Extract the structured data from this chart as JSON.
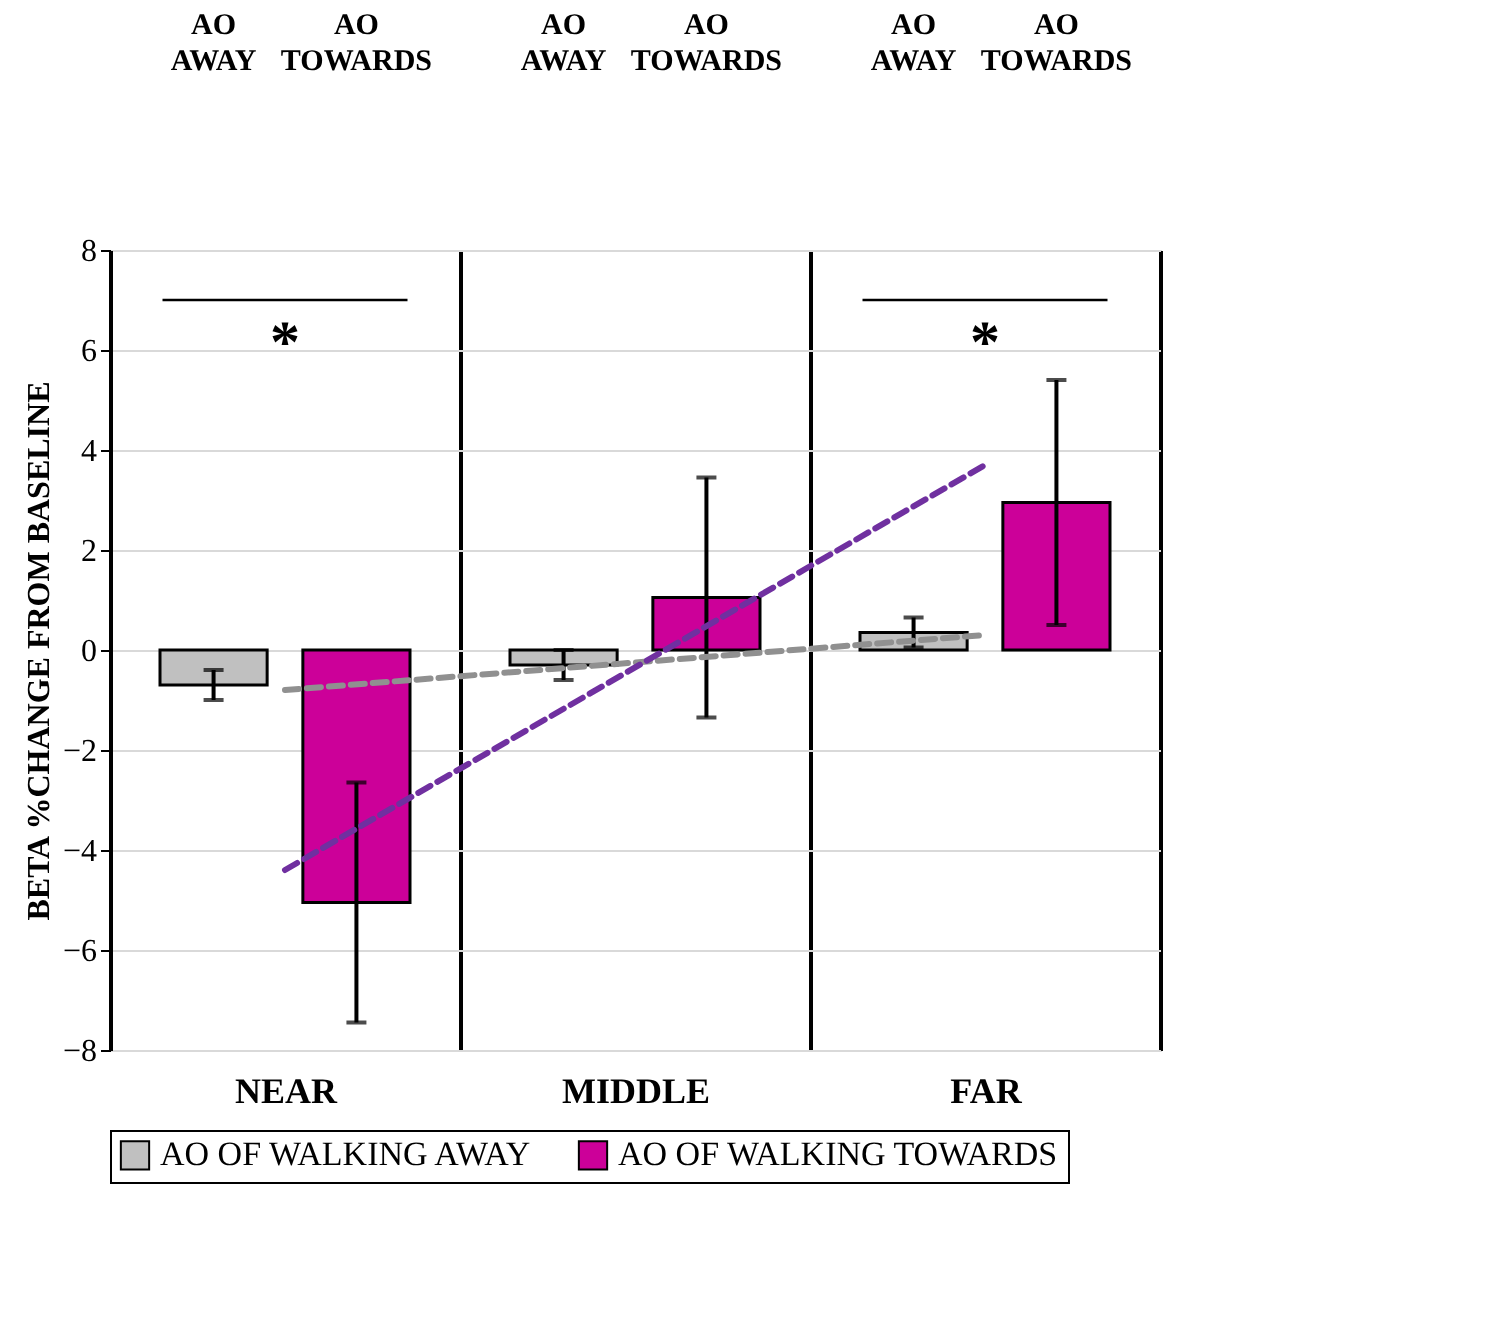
{
  "chart_data": {
    "type": "bar",
    "ylabel": "BETA %CHANGE FROM BASELINE",
    "categories": [
      "NEAR",
      "MIDDLE",
      "FAR"
    ],
    "series": [
      {
        "name": "AO OF WALKING AWAY",
        "color": "#c0c0c0",
        "values": [
          -0.7,
          -0.3,
          0.35
        ],
        "errors": [
          0.3,
          0.3,
          0.3
        ]
      },
      {
        "name": "AO OF WALKING TOWARDS",
        "color": "#cc0099",
        "values": [
          -5.05,
          1.05,
          2.95
        ],
        "errors": [
          2.4,
          2.4,
          2.45
        ]
      },
      {
        "type": "line",
        "color": "#909090",
        "line_style": "dashed",
        "x": [
          "NEAR",
          "FAR"
        ],
        "values": [
          -0.8,
          0.3
        ]
      },
      {
        "type": "line",
        "color": "#7030a0",
        "line_style": "dashed",
        "x": [
          "NEAR",
          "FAR"
        ],
        "values": [
          -4.4,
          3.7
        ]
      }
    ],
    "ylim": [
      -8,
      8
    ],
    "yticks": [
      -8,
      -6,
      -4,
      -2,
      0,
      2,
      4,
      6,
      8
    ],
    "grid": "y",
    "legend": "bottom",
    "annotations": [
      "AO\nAWAY",
      "AO\nTOWARDS",
      "AO\nAWAY",
      "AO\nTOWARDS",
      "AO\nAWAY",
      "AO\nTOWARDS",
      "*",
      "*"
    ]
  }
}
